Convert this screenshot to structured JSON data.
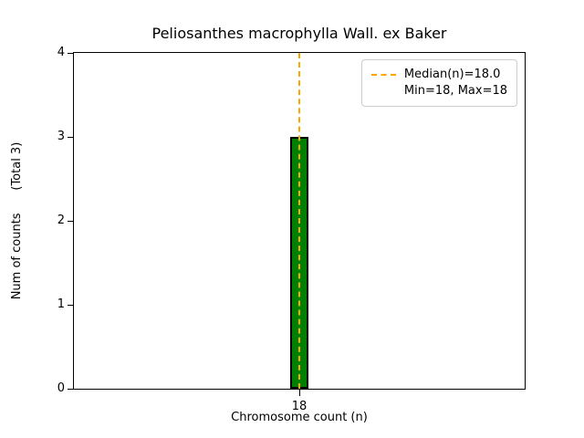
{
  "chart_data": {
    "type": "bar",
    "title": "Peliosanthes macrophylla Wall. ex Baker",
    "xlabel": "Chromosome count (n)",
    "ylabel": "Num of counts      (Total 3)",
    "categories": [
      "18"
    ],
    "values": [
      3
    ],
    "ylim": [
      0,
      4
    ],
    "yticks": [
      "0",
      "1",
      "2",
      "3",
      "4"
    ],
    "grid": "off",
    "bar_color": "#008000",
    "bar_edge_color": "#000000",
    "median_line": {
      "value": 18.0,
      "color": "#ffa500",
      "style": "dashed"
    },
    "legend": {
      "position": "upper right",
      "entries": [
        "Median(n)=18.0",
        "Min=18, Max=18"
      ]
    }
  }
}
